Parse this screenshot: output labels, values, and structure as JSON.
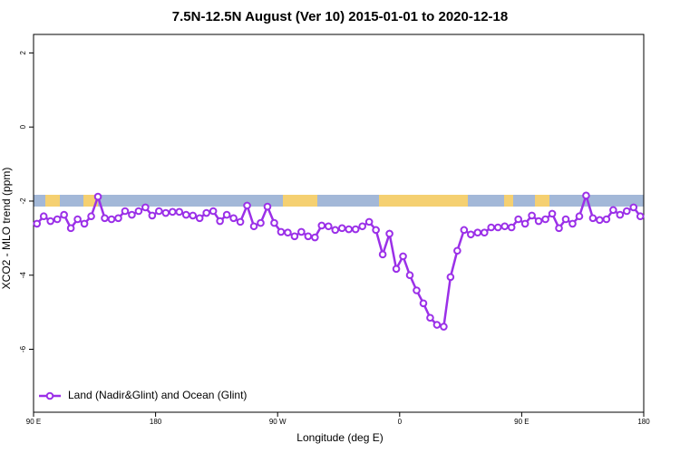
{
  "chart_data": {
    "type": "line",
    "title": "7.5N-12.5N August (Ver 10)   2015-01-01 to 2020-12-18",
    "xlabel": "Longitude (deg E)",
    "ylabel": "XCO2 - MLO trend (ppm)",
    "xlim": [
      90,
      540
    ],
    "ylim": [
      -7.7,
      2.5
    ],
    "xticks": [
      {
        "value": 90,
        "label": "90 E"
      },
      180,
      {
        "value": 270,
        "label": "90 W"
      },
      {
        "value": 360,
        "label": "0"
      },
      {
        "value": 450,
        "label": "90 E"
      },
      {
        "value": 540,
        "label": "180"
      }
    ],
    "yticks": [
      -6,
      -4,
      -2,
      0,
      2
    ],
    "legend": "bottom-left",
    "x": [
      92.5,
      97.5,
      102.5,
      107.5,
      112.5,
      117.5,
      122.5,
      127.5,
      132.5,
      137.5,
      142.5,
      147.5,
      152.5,
      157.5,
      162.5,
      167.5,
      172.5,
      177.5,
      182.5,
      187.5,
      192.5,
      197.5,
      202.5,
      207.5,
      212.5,
      217.5,
      222.5,
      227.5,
      232.5,
      237.5,
      242.5,
      247.5,
      252.5,
      257.5,
      262.5,
      267.5,
      272.5,
      277.5,
      282.5,
      287.5,
      292.5,
      297.5,
      302.5,
      307.5,
      312.5,
      317.5,
      322.5,
      327.5,
      332.5,
      337.5,
      342.5,
      347.5,
      352.5,
      357.5,
      362.5,
      367.5,
      372.5,
      377.5,
      382.5,
      387.5,
      392.5,
      397.5,
      402.5,
      407.5,
      412.5,
      417.5,
      422.5,
      427.5,
      432.5,
      437.5,
      442.5,
      447.5,
      452.5,
      457.5,
      462.5,
      467.5,
      472.5,
      477.5,
      482.5,
      487.5,
      492.5,
      497.5,
      502.5,
      507.5,
      512.5,
      517.5,
      522.5,
      527.5,
      532.5,
      537.5
    ],
    "series": [
      {
        "name": "Land (Nadir&Glint) and Ocean (Glint)",
        "color": "#9b30e8",
        "values": [
          -2.61,
          -2.41,
          -2.54,
          -2.49,
          -2.37,
          -2.73,
          -2.49,
          -2.61,
          -2.41,
          -1.88,
          -2.46,
          -2.49,
          -2.46,
          -2.27,
          -2.37,
          -2.27,
          -2.17,
          -2.39,
          -2.27,
          -2.32,
          -2.29,
          -2.29,
          -2.37,
          -2.39,
          -2.46,
          -2.32,
          -2.27,
          -2.54,
          -2.37,
          -2.46,
          -2.56,
          -2.12,
          -2.68,
          -2.59,
          -2.15,
          -2.59,
          -2.83,
          -2.85,
          -2.95,
          -2.83,
          -2.95,
          -2.98,
          -2.66,
          -2.68,
          -2.78,
          -2.73,
          -2.76,
          -2.76,
          -2.68,
          -2.56,
          -2.78,
          -3.44,
          -2.88,
          -3.83,
          -3.49,
          -4.0,
          -4.41,
          -4.76,
          -5.15,
          -5.34,
          -5.39,
          -4.05,
          -3.34,
          -2.78,
          -2.9,
          -2.85,
          -2.85,
          -2.71,
          -2.71,
          -2.68,
          -2.71,
          -2.49,
          -2.61,
          -2.39,
          -2.54,
          -2.49,
          -2.34,
          -2.73,
          -2.49,
          -2.61,
          -2.41,
          -1.85,
          -2.46,
          -2.51,
          -2.49,
          -2.24,
          -2.37,
          -2.27,
          -2.17,
          -2.41
        ]
      }
    ]
  }
}
